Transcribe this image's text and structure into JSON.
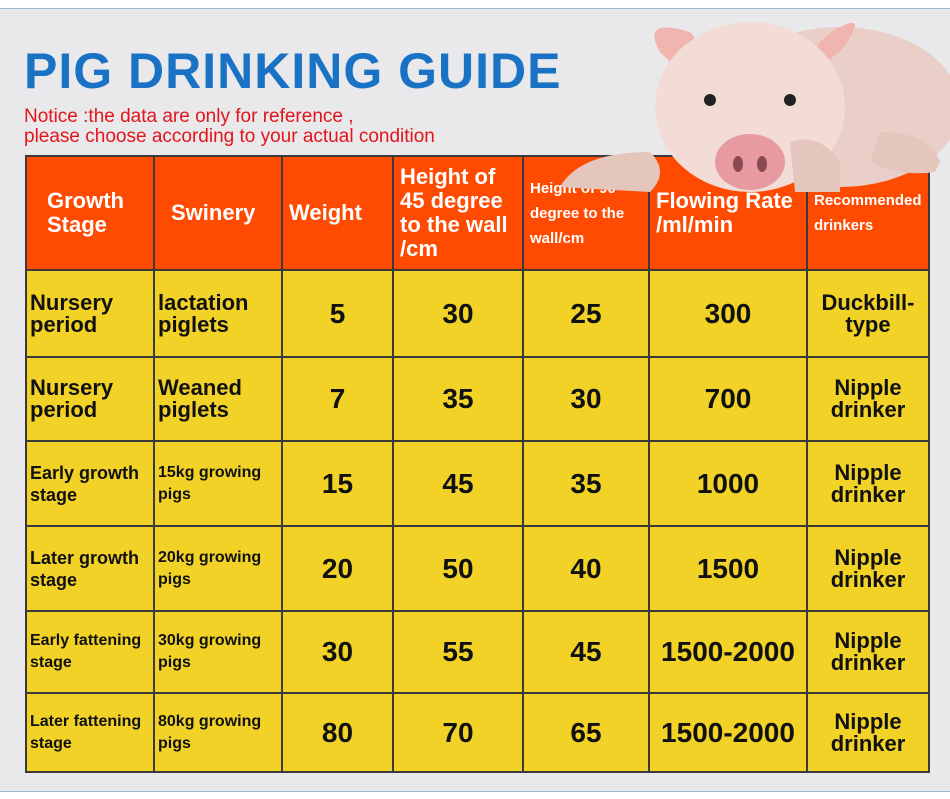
{
  "title": "PIG DRINKING GUIDE",
  "notice": [
    "Notice :the data are only for reference ,",
    "please choose according to your actual condition"
  ],
  "headers": [
    "Growth Stage",
    "Swinery",
    "Weight",
    "Height of 45 degree to the wall /cm",
    "Height of 90 degree to the wall/cm",
    "Flowing Rate /ml/min",
    "Recommended drinkers"
  ],
  "rows": [
    {
      "stage": "Nursery period",
      "swinery": "lactation piglets",
      "weight": "5",
      "h45": "30",
      "h90": "25",
      "rate": "300",
      "drinker": "Duckbill-type"
    },
    {
      "stage": "Nursery period",
      "swinery": "Weaned piglets",
      "weight": "7",
      "h45": "35",
      "h90": "30",
      "rate": "700",
      "drinker": "Nipple drinker"
    },
    {
      "stage": "Early growth stage",
      "swinery": "15kg growing pigs",
      "weight": "15",
      "h45": "45",
      "h90": "35",
      "rate": "1000",
      "drinker": "Nipple drinker"
    },
    {
      "stage": "Later growth stage",
      "swinery": "20kg growing pigs",
      "weight": "20",
      "h45": "50",
      "h90": "40",
      "rate": "1500",
      "drinker": "Nipple drinker"
    },
    {
      "stage": "Early fattening stage",
      "swinery": "30kg growing pigs",
      "weight": "30",
      "h45": "55",
      "h90": "45",
      "rate": "1500-2000",
      "drinker": "Nipple drinker"
    },
    {
      "stage": "Later fattening stage",
      "swinery": "80kg growing pigs",
      "weight": "80",
      "h45": "70",
      "h90": "65",
      "rate": "1500-2000",
      "drinker": "Nipple drinker"
    }
  ],
  "colors": {
    "title": "#1a72c4",
    "notice": "#e4141b",
    "header": "#ff4a02",
    "cell": "#f2d226"
  }
}
